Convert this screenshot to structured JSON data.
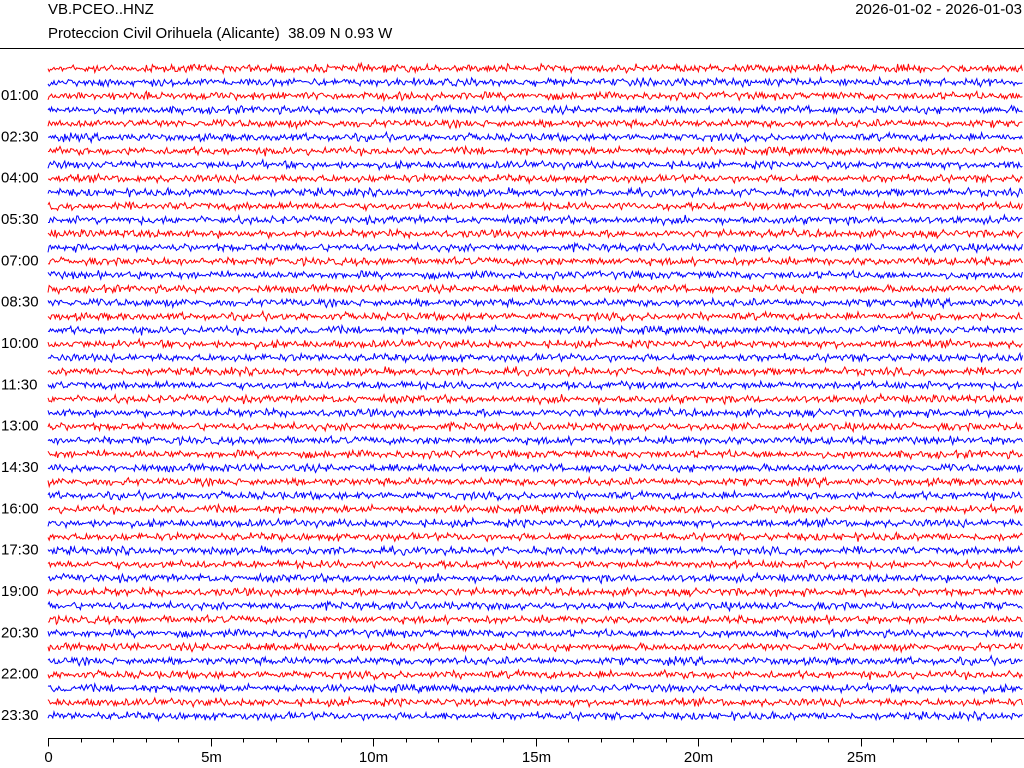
{
  "chart_data": {
    "type": "helicorder",
    "title": "VB.PCEO..HNZ",
    "subtitle": "Proteccion Civil Orihuela (Alicante)  38.09 N 0.93 W",
    "date_range": "2026-01-02 - 2026-01-03",
    "categories": [
      null,
      null,
      "01:00",
      null,
      null,
      "02:30",
      null,
      null,
      "04:00",
      null,
      null,
      "05:30",
      null,
      null,
      "07:00",
      null,
      null,
      "08:30",
      null,
      null,
      "10:00",
      null,
      null,
      "11:30",
      null,
      null,
      "13:00",
      null,
      null,
      "14:30",
      null,
      null,
      "16:00",
      null,
      null,
      "17:30",
      null,
      null,
      "19:00",
      null,
      null,
      "20:30",
      null,
      null,
      "22:00",
      null,
      null,
      "23:30"
    ],
    "colors": [
      "#ff0000",
      "#0000ff"
    ],
    "xlim": [
      0,
      30
    ],
    "xticks": [
      0,
      {
        "value": 5,
        "label": "5m"
      },
      {
        "value": 10,
        "label": "10m"
      },
      {
        "value": 15,
        "label": "15m"
      },
      {
        "value": 20,
        "label": "20m"
      },
      {
        "value": 25,
        "label": "25m"
      }
    ],
    "xminorticks": [
      1,
      2,
      3,
      4,
      6,
      7,
      8,
      9,
      11,
      12,
      13,
      14,
      16,
      17,
      18,
      19,
      21,
      22,
      23,
      24,
      26,
      27,
      28,
      29
    ]
  }
}
